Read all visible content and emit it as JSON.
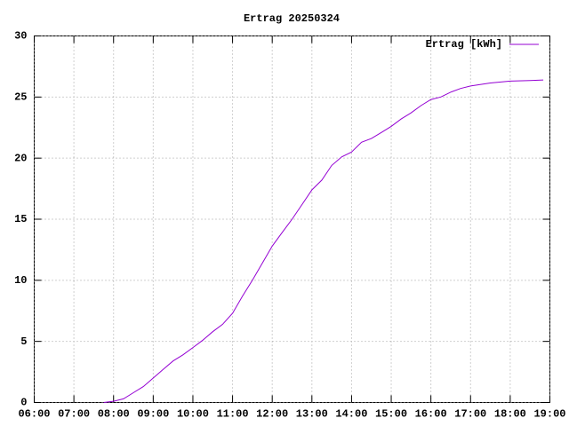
{
  "chart_data": {
    "type": "line",
    "title": "Ertrag 20250324",
    "x": [
      "07:45",
      "08:00",
      "08:15",
      "08:30",
      "08:45",
      "09:00",
      "09:15",
      "09:30",
      "09:45",
      "10:00",
      "10:15",
      "10:30",
      "10:45",
      "11:00",
      "11:15",
      "11:30",
      "11:45",
      "12:00",
      "12:15",
      "12:30",
      "12:45",
      "13:00",
      "13:15",
      "13:30",
      "13:45",
      "14:00",
      "14:15",
      "14:30",
      "14:45",
      "15:00",
      "15:15",
      "15:30",
      "15:45",
      "16:00",
      "16:15",
      "16:30",
      "16:45",
      "17:00",
      "17:30",
      "18:00",
      "18:30",
      "18:50"
    ],
    "series": [
      {
        "name": "Ertrag [kWh]",
        "color": "#9400d3",
        "values": [
          0,
          0.1,
          0.3,
          0.8,
          1.3,
          2.0,
          2.7,
          3.4,
          3.9,
          4.5,
          5.1,
          5.8,
          6.4,
          7.3,
          8.7,
          10.0,
          11.4,
          12.8,
          13.9,
          15.0,
          16.2,
          17.4,
          18.2,
          19.4,
          20.1,
          20.5,
          21.3,
          21.6,
          22.1,
          22.6,
          23.2,
          23.7,
          24.3,
          24.8,
          25.0,
          25.4,
          25.7,
          25.9,
          26.15,
          26.3,
          26.35,
          26.4
        ]
      }
    ],
    "xlim": [
      "06:00",
      "19:00"
    ],
    "xticks": [
      "06:00",
      "07:00",
      "08:00",
      "09:00",
      "10:00",
      "11:00",
      "12:00",
      "13:00",
      "14:00",
      "15:00",
      "16:00",
      "17:00",
      "18:00",
      "19:00"
    ],
    "ylim": [
      0,
      30
    ],
    "yticks": [
      0,
      5,
      10,
      15,
      20,
      25,
      30
    ],
    "grid": true,
    "legend": "top-right"
  }
}
